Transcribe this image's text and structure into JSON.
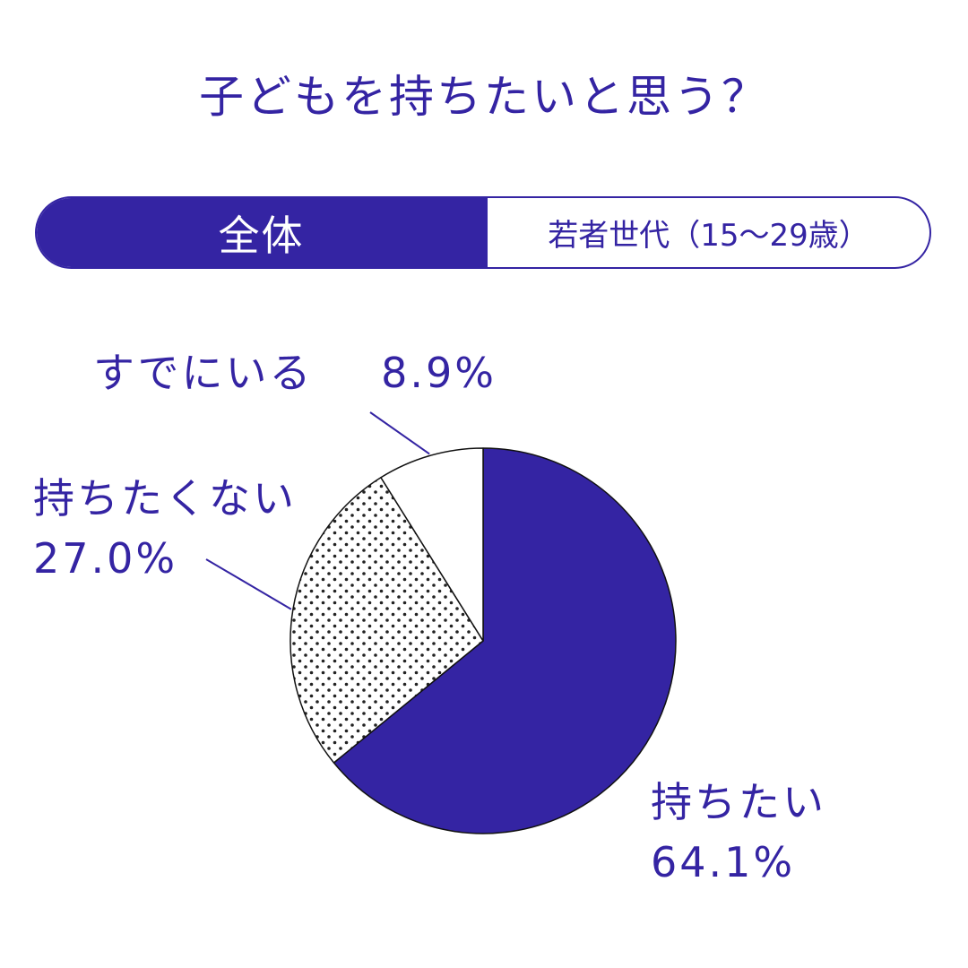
{
  "title": "子どもを持ちたいと思う？",
  "tabs": {
    "all": "全体",
    "young": "若者世代（15～29歳）"
  },
  "colors": {
    "primary": "#3424a3",
    "background": "#ffffff",
    "dots": "#222222"
  },
  "chart_data": {
    "type": "pie",
    "title": "子どもを持ちたいと思う？",
    "slices": [
      {
        "label": "持ちたい",
        "value": 64.1,
        "value_label": "64.1%",
        "fill": "solid"
      },
      {
        "label": "持ちたくない",
        "value": 27.0,
        "value_label": "27.0%",
        "fill": "dotted"
      },
      {
        "label": "すでにいる",
        "value": 8.9,
        "value_label": "8.9%",
        "fill": "white"
      }
    ]
  }
}
